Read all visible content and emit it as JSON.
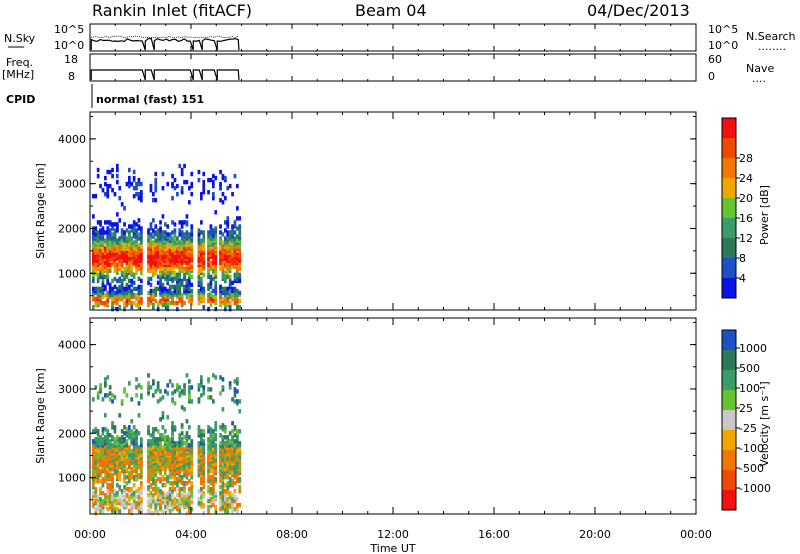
{
  "header": {
    "title": "Rankin Inlet (fitACF)",
    "beam": "Beam 04",
    "date": "04/Dec/2013"
  },
  "nsky_panel": {
    "left_label": "N.Sky",
    "left_ticks": [
      "10^5",
      "10^0"
    ],
    "right_ticks": [
      "10^5",
      "10^0"
    ],
    "right_label": "N.Search",
    "right_dots": "........"
  },
  "freq_panel": {
    "left_label_1": "Freq.",
    "left_label_2": "[MHz]",
    "left_ticks": [
      "18",
      "8"
    ],
    "right_ticks": [
      "60",
      "0"
    ],
    "right_label": "Nave",
    "right_dots": "...."
  },
  "cpid": {
    "label": "CPID",
    "mode": "normal (fast) 151"
  },
  "colors": {
    "power": [
      "#0a14e6",
      "#1e4fc3",
      "#2d7a5a",
      "#3a9a6a",
      "#66c22e",
      "#f0a800",
      "#f07800",
      "#f04800",
      "#f01010"
    ],
    "velocity": [
      "#f01010",
      "#f04800",
      "#f07800",
      "#f0a800",
      "#c8c8c8",
      "#66c22e",
      "#3a9a6a",
      "#2d7a5a",
      "#1e4fc3"
    ]
  },
  "chart_data": [
    {
      "type": "heatmap",
      "ylabel": "Slant Range [km]",
      "xlabel": "",
      "xlim": [
        "00:00",
        "24:00"
      ],
      "ylim": [
        180,
        4600
      ],
      "yticks": [
        "1000",
        "2000",
        "3000",
        "4000"
      ],
      "colorbar_label": "Power [dB]",
      "colorbar_ticks": [
        "4",
        "8",
        "12",
        "16",
        "20",
        "24",
        "28"
      ],
      "data_window_hours": [
        0.0,
        5.9
      ]
    },
    {
      "type": "heatmap",
      "ylabel": "Slant Range [km]",
      "xlabel": "Time UT",
      "xlim": [
        "00:00",
        "24:00"
      ],
      "ylim": [
        180,
        4600
      ],
      "xticks": [
        "00:00",
        "04:00",
        "08:00",
        "12:00",
        "16:00",
        "20:00",
        "00:00"
      ],
      "yticks": [
        "1000",
        "2000",
        "3000",
        "4000"
      ],
      "colorbar_label": "Velocity [m s⁻¹]",
      "colorbar_ticks": [
        "1000",
        "500",
        "100",
        "25",
        "-25",
        "-100",
        "-500",
        "-1000"
      ],
      "data_window_hours": [
        0.0,
        5.9
      ]
    }
  ]
}
